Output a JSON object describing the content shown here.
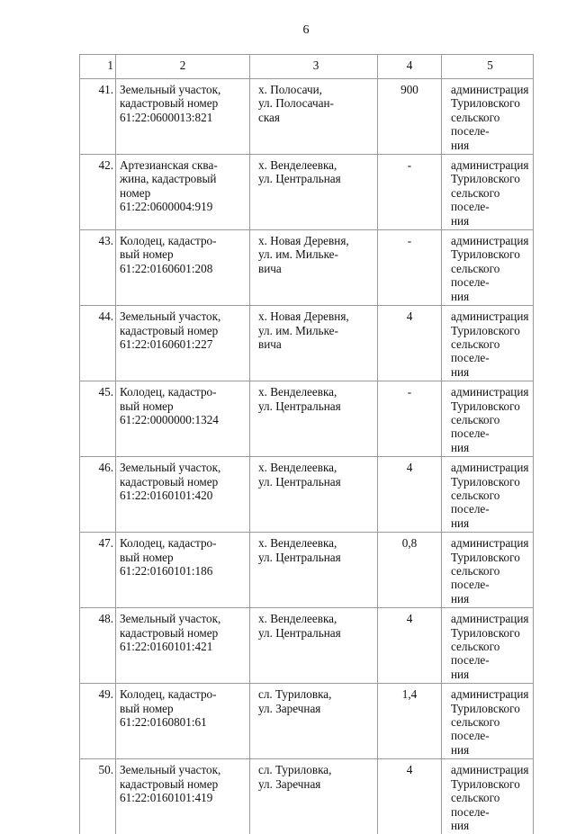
{
  "page_number": "6",
  "table": {
    "headers": [
      "1",
      "2",
      "3",
      "4",
      "5"
    ],
    "rows": [
      {
        "num": "41.",
        "object": "Земельный участок,\nкадастровый номер\n61:22:0600013:821",
        "address": "х. Полосачи,\nул. Полосачан-\nская",
        "value": "900",
        "owner": "администрация\nТуриловского\nсельского поселе-\nния"
      },
      {
        "num": "42.",
        "object": "Артезианская сква-\nжина, кадастровый\nномер\n61:22:0600004:919",
        "address": "х. Венделеевка,\nул. Центральная",
        "value": "-",
        "owner": "администрация\nТуриловского\nсельского поселе-\nния"
      },
      {
        "num": "43.",
        "object": "Колодец, кадастро-\nвый номер\n61:22:0160601:208",
        "address": "х. Новая Деревня,\nул. им. Мильке-\nвича",
        "value": "-",
        "owner": "администрация\nТуриловского\nсельского поселе-\nния"
      },
      {
        "num": "44.",
        "object": "Земельный участок,\nкадастровый номер\n61:22:0160601:227",
        "address": "х. Новая Деревня,\nул. им. Мильке-\nвича",
        "value": "4",
        "owner": "администрация\nТуриловского\nсельского поселе-\nния"
      },
      {
        "num": "45.",
        "object": "Колодец, кадастро-\nвый номер\n61:22:0000000:1324",
        "address": "х. Венделеевка,\nул. Центральная",
        "value": "-",
        "owner": "администрация\nТуриловского\nсельского поселе-\nния"
      },
      {
        "num": "46.",
        "object": "Земельный участок,\nкадастровый номер\n61:22:0160101:420",
        "address": "х. Венделеевка,\nул. Центральная",
        "value": "4",
        "owner": "администрация\nТуриловского\nсельского поселе-\nния"
      },
      {
        "num": "47.",
        "object": "Колодец, кадастро-\nвый номер\n61:22:0160101:186",
        "address": "х. Венделеевка,\nул. Центральная",
        "value": "0,8",
        "owner": "администрация\nТуриловского\nсельского поселе-\nния"
      },
      {
        "num": "48.",
        "object": "Земельный участок,\nкадастровый номер\n61:22:0160101:421",
        "address": "х. Венделеевка,\nул. Центральная",
        "value": "4",
        "owner": "администрация\nТуриловского\nсельского поселе-\nния"
      },
      {
        "num": "49.",
        "object": "Колодец, кадастро-\nвый номер\n61:22:0160801:61",
        "address": "сл. Туриловка,\nул. Заречная",
        "value": "1,4",
        "owner": "администрация\nТуриловского\nсельского поселе-\nния"
      },
      {
        "num": "50.",
        "object": "Земельный участок,\nкадастровый номер\n61:22:0160101:419",
        "address": "сл. Туриловка,\nул. Заречная",
        "value": "4",
        "owner": "администрация\nТуриловского\nсельского поселе-\nния"
      }
    ]
  }
}
